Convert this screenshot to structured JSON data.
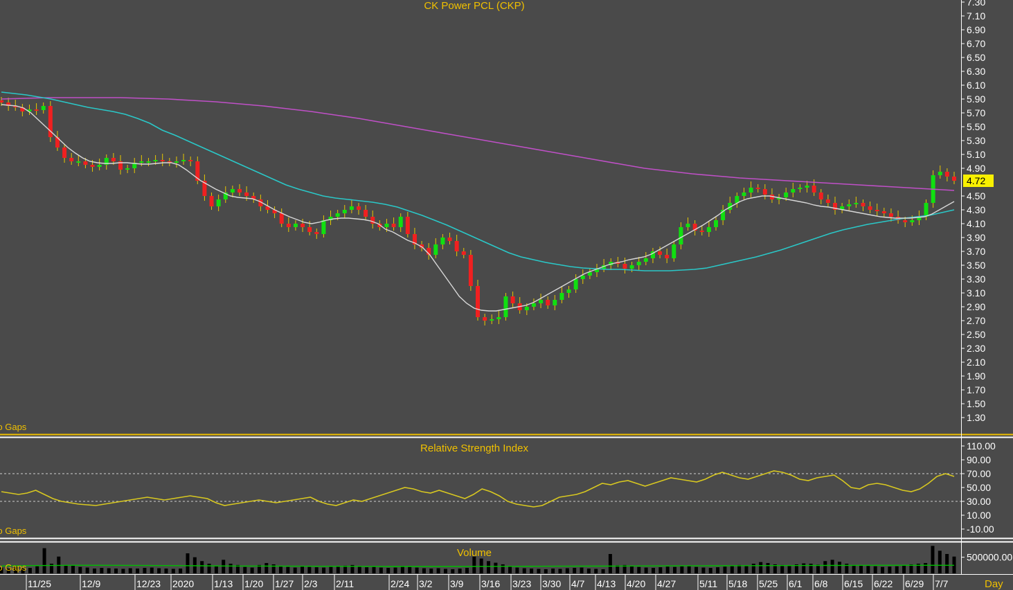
{
  "chart_data": [
    {
      "type": "candlestick",
      "title": "CK Power PCL (CKP)",
      "corner_label": "No Gaps",
      "y_ticks": [
        "7.30",
        "7.10",
        "6.90",
        "6.70",
        "6.50",
        "6.30",
        "6.10",
        "5.90",
        "5.70",
        "5.50",
        "5.30",
        "5.10",
        "4.90",
        "4.72",
        "4.50",
        "4.30",
        "4.10",
        "3.90",
        "3.70",
        "3.50",
        "3.30",
        "3.10",
        "2.90",
        "2.70",
        "2.50",
        "2.30",
        "2.10",
        "1.90",
        "1.70",
        "1.50",
        "1.30"
      ],
      "ylim": [
        1.2,
        7.35
      ],
      "last_value": "4.72",
      "x_ticks": [
        "11/25",
        "12/9",
        "12/23",
        "2020",
        "1/13",
        "1/20",
        "1/27",
        "2/3",
        "2/11",
        "2/24",
        "3/2",
        "3/9",
        "3/16",
        "3/23",
        "3/30",
        "4/7",
        "4/13",
        "4/20",
        "4/27",
        "5/11",
        "5/18",
        "5/25",
        "6/1",
        "6/8",
        "6/15",
        "6/22",
        "6/29",
        "7/7"
      ],
      "closes": [
        5.85,
        5.8,
        5.78,
        5.72,
        5.75,
        5.74,
        5.8,
        5.35,
        5.2,
        5.05,
        5.0,
        5.0,
        4.95,
        4.92,
        4.95,
        5.05,
        5.0,
        4.88,
        4.9,
        4.98,
        5.0,
        5.0,
        5.02,
        5.0,
        4.98,
        5.0,
        5.02,
        5.0,
        4.72,
        4.5,
        4.35,
        4.45,
        4.55,
        4.6,
        4.55,
        4.5,
        4.45,
        4.35,
        4.3,
        4.25,
        4.1,
        4.05,
        4.1,
        4.05,
        3.98,
        3.95,
        4.15,
        4.2,
        4.25,
        4.3,
        4.35,
        4.3,
        4.2,
        4.1,
        4.05,
        4.1,
        4.05,
        4.2,
        3.95,
        3.8,
        3.75,
        3.65,
        3.8,
        3.9,
        3.85,
        3.7,
        3.65,
        3.2,
        2.75,
        2.7,
        2.72,
        2.75,
        3.05,
        2.95,
        2.85,
        2.9,
        2.95,
        3.0,
        2.92,
        3.0,
        3.1,
        3.15,
        3.3,
        3.35,
        3.4,
        3.45,
        3.5,
        3.55,
        3.52,
        3.45,
        3.5,
        3.55,
        3.6,
        3.7,
        3.65,
        3.6,
        3.8,
        4.05,
        4.1,
        4.0,
        3.98,
        4.05,
        4.15,
        4.3,
        4.4,
        4.5,
        4.55,
        4.62,
        4.6,
        4.52,
        4.45,
        4.48,
        4.55,
        4.6,
        4.62,
        4.65,
        4.55,
        4.45,
        4.4,
        4.3,
        4.35,
        4.38,
        4.4,
        4.35,
        4.3,
        4.28,
        4.25,
        4.2,
        4.15,
        4.12,
        4.15,
        4.2,
        4.4,
        4.8,
        4.85,
        4.78,
        4.72
      ],
      "series": [
        {
          "name": "MA10",
          "color": "#d8d8d8",
          "values": [
            5.82,
            5.81,
            5.8,
            5.77,
            5.7,
            5.6,
            5.5,
            5.4,
            5.3,
            5.2,
            5.12,
            5.05,
            5.0,
            4.98,
            4.97,
            4.97,
            4.98,
            4.98,
            4.97,
            4.96,
            4.96,
            4.97,
            4.98,
            4.98,
            4.95,
            4.88,
            4.8,
            4.72,
            4.66,
            4.6,
            4.55,
            4.5,
            4.48,
            4.47,
            4.46,
            4.42,
            4.36,
            4.3,
            4.25,
            4.2,
            4.16,
            4.12,
            4.1,
            4.12,
            4.15,
            4.17,
            4.18,
            4.18,
            4.17,
            4.16,
            4.14,
            4.1,
            4.02,
            3.98,
            3.92,
            3.86,
            3.82,
            3.76,
            3.65,
            3.5,
            3.35,
            3.2,
            3.05,
            2.95,
            2.88,
            2.85,
            2.84,
            2.84,
            2.86,
            2.88,
            2.9,
            2.92,
            2.96,
            3.02,
            3.08,
            3.14,
            3.2,
            3.26,
            3.32,
            3.38,
            3.42,
            3.46,
            3.5,
            3.53,
            3.55,
            3.58,
            3.6,
            3.62,
            3.66,
            3.72,
            3.78,
            3.84,
            3.9,
            3.96,
            4.02,
            4.08,
            4.15,
            4.22,
            4.3,
            4.36,
            4.42,
            4.46,
            4.48,
            4.5,
            4.5,
            4.48,
            4.46,
            4.44,
            4.42,
            4.4,
            4.37,
            4.35,
            4.34,
            4.32,
            4.3,
            4.28,
            4.26,
            4.24,
            4.22,
            4.2,
            4.19,
            4.18,
            4.18,
            4.18,
            4.19,
            4.2,
            4.24,
            4.3,
            4.36,
            4.42
          ]
        },
        {
          "name": "MA50",
          "color": "#2ac8c8",
          "values": [
            6.0,
            5.98,
            5.96,
            5.93,
            5.9,
            5.86,
            5.82,
            5.78,
            5.75,
            5.72,
            5.68,
            5.62,
            5.55,
            5.45,
            5.38,
            5.3,
            5.22,
            5.14,
            5.06,
            4.98,
            4.9,
            4.82,
            4.74,
            4.66,
            4.6,
            4.55,
            4.5,
            4.47,
            4.45,
            4.43,
            4.41,
            4.38,
            4.34,
            4.28,
            4.22,
            4.15,
            4.08,
            4.0,
            3.92,
            3.84,
            3.76,
            3.68,
            3.62,
            3.58,
            3.54,
            3.51,
            3.48,
            3.46,
            3.45,
            3.44,
            3.44,
            3.43,
            3.42,
            3.42,
            3.42,
            3.43,
            3.44,
            3.46,
            3.5,
            3.54,
            3.58,
            3.62,
            3.67,
            3.72,
            3.78,
            3.84,
            3.9,
            3.96,
            4.01,
            4.05,
            4.09,
            4.12,
            4.15,
            4.18,
            4.2,
            4.22,
            4.26,
            4.3
          ]
        },
        {
          "name": "MA200",
          "color": "#c050c8",
          "values": [
            5.9,
            5.91,
            5.92,
            5.92,
            5.92,
            5.92,
            5.91,
            5.9,
            5.88,
            5.86,
            5.83,
            5.8,
            5.76,
            5.72,
            5.67,
            5.62,
            5.56,
            5.5,
            5.44,
            5.38,
            5.32,
            5.26,
            5.2,
            5.14,
            5.08,
            5.02,
            4.96,
            4.9,
            4.86,
            4.82,
            4.79,
            4.76,
            4.74,
            4.72,
            4.7,
            4.68,
            4.66,
            4.64,
            4.62,
            4.6,
            4.58
          ]
        }
      ]
    },
    {
      "type": "line",
      "title": "Relative Strength Index",
      "corner_label": "No Gaps",
      "y_ticks": [
        "110.00",
        "90.00",
        "70.00",
        "50.00",
        "30.00",
        "10.00",
        "-10.00"
      ],
      "ylim": [
        -15,
        115
      ],
      "reference_lines": [
        70,
        30
      ],
      "series": [
        {
          "name": "RSI",
          "color": "#d8c820",
          "values": [
            44,
            42,
            40,
            42,
            46,
            40,
            34,
            30,
            28,
            26,
            25,
            24,
            26,
            28,
            30,
            32,
            34,
            36,
            34,
            32,
            34,
            36,
            38,
            36,
            34,
            28,
            24,
            26,
            28,
            30,
            32,
            30,
            28,
            30,
            32,
            34,
            36,
            30,
            26,
            24,
            28,
            32,
            30,
            34,
            38,
            42,
            46,
            50,
            48,
            44,
            42,
            46,
            42,
            38,
            34,
            40,
            48,
            44,
            38,
            30,
            26,
            24,
            22,
            24,
            30,
            36,
            38,
            40,
            44,
            50,
            56,
            54,
            58,
            60,
            56,
            52,
            56,
            60,
            64,
            62,
            60,
            58,
            62,
            68,
            72,
            68,
            64,
            62,
            66,
            70,
            74,
            72,
            68,
            62,
            60,
            64,
            66,
            68,
            60,
            50,
            48,
            54,
            56,
            54,
            50,
            46,
            44,
            48,
            56,
            66,
            70,
            66
          ]
        }
      ]
    },
    {
      "type": "bar",
      "title": "Volume",
      "corner_label": "No Gaps",
      "y_ticks": [
        "500000.00"
      ],
      "ylim": [
        0,
        900000
      ],
      "series": [
        {
          "name": "Volume",
          "color": "#000000",
          "values": [
            180000,
            150000,
            200000,
            160000,
            170000,
            220000,
            780000,
            300000,
            520000,
            260000,
            240000,
            200000,
            180000,
            150000,
            170000,
            160000,
            150000,
            140000,
            160000,
            150000,
            170000,
            180000,
            160000,
            150000,
            140000,
            150000,
            620000,
            500000,
            380000,
            300000,
            240000,
            420000,
            300000,
            260000,
            200000,
            180000,
            260000,
            320000,
            280000,
            220000,
            200000,
            180000,
            220000,
            200000,
            190000,
            180000,
            200000,
            220000,
            240000,
            260000,
            210000,
            190000,
            200000,
            180000,
            170000,
            180000,
            230000,
            200000,
            180000,
            160000,
            150000,
            160000,
            140000,
            130000,
            150000,
            170000,
            520000,
            460000,
            380000,
            330000,
            280000,
            220000,
            180000,
            160000,
            150000,
            140000,
            130000,
            150000,
            140000,
            160000,
            170000,
            180000,
            150000,
            140000,
            130000,
            600000,
            250000,
            260000,
            220000,
            200000,
            180000,
            170000,
            190000,
            210000,
            200000,
            220000,
            230000,
            200000,
            180000,
            170000,
            190000,
            210000,
            240000,
            260000,
            230000,
            300000,
            350000,
            320000,
            280000,
            260000,
            240000,
            280000,
            310000,
            300000,
            270000,
            380000,
            420000,
            360000,
            300000,
            260000,
            240000,
            230000,
            220000,
            200000,
            210000,
            220000,
            240000,
            280000,
            300000,
            320000,
            850000,
            700000,
            600000,
            520000
          ]
        },
        {
          "name": "Volume MA",
          "color": "#00c000",
          "values": [
            230000,
            240000,
            245000,
            250000,
            250000,
            248000,
            245000,
            240000,
            235000,
            230000,
            228000,
            225000,
            222000,
            220000,
            218000,
            216000,
            215000,
            214000,
            214000,
            215000,
            216000,
            218000,
            220000,
            222000,
            224000,
            226000,
            230000,
            232000,
            234000,
            236000,
            238000,
            240000,
            242000,
            244000,
            246000,
            248000,
            250000,
            250000,
            250000,
            250000
          ]
        }
      ]
    }
  ],
  "x_axis_label": "Day"
}
